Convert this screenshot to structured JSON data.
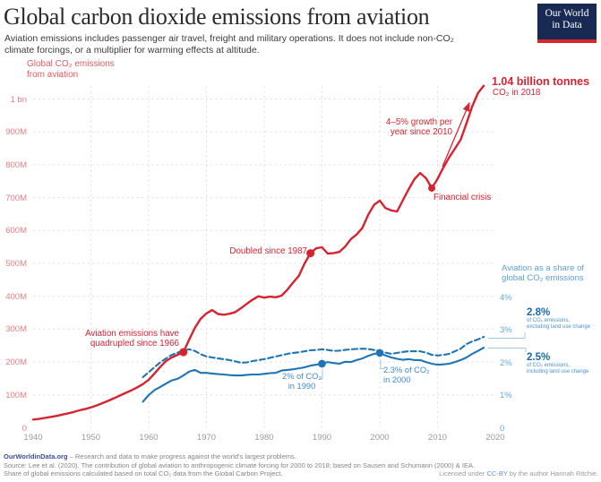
{
  "header": {
    "title": "Global carbon dioxide emissions from aviation",
    "subtitle": "Aviation emissions includes passenger air travel, freight and military operations. It does not include non-CO₂\nclimate forcings, or a multiplier for warming effects at altitude.",
    "logo_line1": "Our World",
    "logo_line2": "in Data"
  },
  "chart_data": {
    "type": "line",
    "title": "Global carbon dioxide emissions from aviation",
    "grid": "dashed",
    "left_axis": {
      "label": "Global CO₂ emissions\nfrom aviation",
      "unit": "tonnes of CO₂ per year",
      "range_million_tonnes": [
        0,
        1040
      ],
      "ticks": [
        {
          "v": 0,
          "label": "0"
        },
        {
          "v": 100,
          "label": "100M"
        },
        {
          "v": 200,
          "label": "200M"
        },
        {
          "v": 300,
          "label": "300M"
        },
        {
          "v": 400,
          "label": "400M"
        },
        {
          "v": 500,
          "label": "500M"
        },
        {
          "v": 600,
          "label": "600M"
        },
        {
          "v": 700,
          "label": "700M"
        },
        {
          "v": 800,
          "label": "800M"
        },
        {
          "v": 900,
          "label": "900M"
        },
        {
          "v": 1000,
          "label": "1 bn"
        }
      ]
    },
    "right_axis": {
      "label": "Aviation as a share of\nglobal CO₂ emissions",
      "range_percent": [
        0,
        4
      ],
      "ticks": [
        {
          "v": 0,
          "label": "0"
        },
        {
          "v": 1,
          "label": "1%"
        },
        {
          "v": 2,
          "label": "2%"
        },
        {
          "v": 3,
          "label": "3%"
        },
        {
          "v": 4,
          "label": "4%"
        }
      ]
    },
    "x_axis": {
      "range": [
        1940,
        2020
      ],
      "ticks": [
        1940,
        1950,
        1960,
        1970,
        1980,
        1990,
        2000,
        2010,
        2020
      ]
    },
    "series": [
      {
        "name": "Global CO₂ emissions from aviation (million tonnes)",
        "axis": "left",
        "style": "solid",
        "color": "#d6232f",
        "width": 2.4,
        "points": [
          [
            1940,
            25
          ],
          [
            1941,
            27
          ],
          [
            1942,
            30
          ],
          [
            1943,
            33
          ],
          [
            1944,
            36
          ],
          [
            1945,
            40
          ],
          [
            1946,
            44
          ],
          [
            1947,
            48
          ],
          [
            1948,
            53
          ],
          [
            1949,
            57
          ],
          [
            1950,
            62
          ],
          [
            1951,
            68
          ],
          [
            1952,
            75
          ],
          [
            1953,
            82
          ],
          [
            1954,
            90
          ],
          [
            1955,
            98
          ],
          [
            1956,
            106
          ],
          [
            1957,
            114
          ],
          [
            1958,
            123
          ],
          [
            1959,
            133
          ],
          [
            1960,
            146
          ],
          [
            1961,
            165
          ],
          [
            1962,
            185
          ],
          [
            1963,
            203
          ],
          [
            1964,
            214
          ],
          [
            1965,
            222
          ],
          [
            1966,
            230
          ],
          [
            1967,
            268
          ],
          [
            1968,
            304
          ],
          [
            1969,
            332
          ],
          [
            1970,
            348
          ],
          [
            1971,
            358
          ],
          [
            1972,
            346
          ],
          [
            1973,
            344
          ],
          [
            1974,
            347
          ],
          [
            1975,
            352
          ],
          [
            1976,
            364
          ],
          [
            1977,
            377
          ],
          [
            1978,
            390
          ],
          [
            1979,
            400
          ],
          [
            1980,
            396
          ],
          [
            1981,
            399
          ],
          [
            1982,
            397
          ],
          [
            1983,
            402
          ],
          [
            1984,
            420
          ],
          [
            1985,
            442
          ],
          [
            1986,
            462
          ],
          [
            1987,
            500
          ],
          [
            1988,
            531
          ],
          [
            1989,
            546
          ],
          [
            1990,
            549
          ],
          [
            1991,
            530
          ],
          [
            1992,
            531
          ],
          [
            1993,
            535
          ],
          [
            1994,
            551
          ],
          [
            1995,
            574
          ],
          [
            1996,
            588
          ],
          [
            1997,
            608
          ],
          [
            1998,
            648
          ],
          [
            1999,
            678
          ],
          [
            2000,
            691
          ],
          [
            2001,
            668
          ],
          [
            2002,
            661
          ],
          [
            2003,
            658
          ],
          [
            2004,
            692
          ],
          [
            2005,
            726
          ],
          [
            2006,
            756
          ],
          [
            2007,
            775
          ],
          [
            2008,
            759
          ],
          [
            2009,
            729
          ],
          [
            2010,
            757
          ],
          [
            2011,
            791
          ],
          [
            2012,
            822
          ],
          [
            2013,
            849
          ],
          [
            2014,
            876
          ],
          [
            2015,
            926
          ],
          [
            2016,
            977
          ],
          [
            2017,
            1018
          ],
          [
            2018,
            1040
          ]
        ]
      },
      {
        "name": "Share of CO₂ emissions excluding land use change (%)",
        "axis": "right",
        "style": "dashed",
        "color": "#1e74b4",
        "width": 2.1,
        "points": [
          [
            1959,
            1.55
          ],
          [
            1960,
            1.7
          ],
          [
            1961,
            1.85
          ],
          [
            1962,
            2.0
          ],
          [
            1963,
            2.12
          ],
          [
            1964,
            2.23
          ],
          [
            1965,
            2.3
          ],
          [
            1966,
            2.37
          ],
          [
            1967,
            2.4
          ],
          [
            1968,
            2.35
          ],
          [
            1969,
            2.25
          ],
          [
            1970,
            2.18
          ],
          [
            1971,
            2.15
          ],
          [
            1972,
            2.12
          ],
          [
            1973,
            2.1
          ],
          [
            1974,
            2.07
          ],
          [
            1975,
            2.03
          ],
          [
            1976,
            1.99
          ],
          [
            1977,
            2.0
          ],
          [
            1978,
            2.04
          ],
          [
            1979,
            2.07
          ],
          [
            1980,
            2.1
          ],
          [
            1981,
            2.14
          ],
          [
            1982,
            2.18
          ],
          [
            1983,
            2.22
          ],
          [
            1984,
            2.26
          ],
          [
            1985,
            2.29
          ],
          [
            1986,
            2.31
          ],
          [
            1987,
            2.34
          ],
          [
            1988,
            2.37
          ],
          [
            1989,
            2.38
          ],
          [
            1990,
            2.4
          ],
          [
            1991,
            2.38
          ],
          [
            1992,
            2.35
          ],
          [
            1993,
            2.36
          ],
          [
            1994,
            2.38
          ],
          [
            1995,
            2.4
          ],
          [
            1996,
            2.41
          ],
          [
            1997,
            2.42
          ],
          [
            1998,
            2.41
          ],
          [
            1999,
            2.38
          ],
          [
            2000,
            2.35
          ],
          [
            2001,
            2.3
          ],
          [
            2002,
            2.26
          ],
          [
            2003,
            2.29
          ],
          [
            2004,
            2.32
          ],
          [
            2005,
            2.34
          ],
          [
            2006,
            2.34
          ],
          [
            2007,
            2.34
          ],
          [
            2008,
            2.3
          ],
          [
            2009,
            2.23
          ],
          [
            2010,
            2.21
          ],
          [
            2011,
            2.23
          ],
          [
            2012,
            2.26
          ],
          [
            2013,
            2.34
          ],
          [
            2014,
            2.42
          ],
          [
            2015,
            2.56
          ],
          [
            2016,
            2.64
          ],
          [
            2017,
            2.7
          ],
          [
            2018,
            2.78
          ]
        ]
      },
      {
        "name": "Share of CO₂ emissions including land use change (%)",
        "axis": "right",
        "style": "solid",
        "color": "#1e74b4",
        "width": 2.1,
        "points": [
          [
            1959,
            0.8
          ],
          [
            1960,
            1.0
          ],
          [
            1961,
            1.15
          ],
          [
            1962,
            1.25
          ],
          [
            1963,
            1.35
          ],
          [
            1964,
            1.45
          ],
          [
            1965,
            1.5
          ],
          [
            1966,
            1.6
          ],
          [
            1967,
            1.72
          ],
          [
            1968,
            1.77
          ],
          [
            1969,
            1.68
          ],
          [
            1970,
            1.68
          ],
          [
            1971,
            1.66
          ],
          [
            1972,
            1.64
          ],
          [
            1973,
            1.63
          ],
          [
            1974,
            1.61
          ],
          [
            1975,
            1.6
          ],
          [
            1976,
            1.6
          ],
          [
            1977,
            1.62
          ],
          [
            1978,
            1.63
          ],
          [
            1979,
            1.63
          ],
          [
            1980,
            1.65
          ],
          [
            1981,
            1.67
          ],
          [
            1982,
            1.68
          ],
          [
            1983,
            1.75
          ],
          [
            1984,
            1.77
          ],
          [
            1985,
            1.79
          ],
          [
            1986,
            1.82
          ],
          [
            1987,
            1.85
          ],
          [
            1988,
            1.9
          ],
          [
            1989,
            1.93
          ],
          [
            1990,
            1.96
          ],
          [
            1991,
            2.01
          ],
          [
            1992,
            1.98
          ],
          [
            1993,
            1.96
          ],
          [
            1994,
            2.02
          ],
          [
            1995,
            2.01
          ],
          [
            1996,
            2.07
          ],
          [
            1997,
            2.12
          ],
          [
            1998,
            2.2
          ],
          [
            1999,
            2.26
          ],
          [
            2000,
            2.29
          ],
          [
            2001,
            2.21
          ],
          [
            2002,
            2.15
          ],
          [
            2003,
            2.11
          ],
          [
            2004,
            2.08
          ],
          [
            2005,
            2.1
          ],
          [
            2006,
            2.07
          ],
          [
            2007,
            2.07
          ],
          [
            2008,
            2.01
          ],
          [
            2009,
            1.96
          ],
          [
            2010,
            1.93
          ],
          [
            2011,
            1.94
          ],
          [
            2012,
            1.96
          ],
          [
            2013,
            2.01
          ],
          [
            2014,
            2.07
          ],
          [
            2015,
            2.15
          ],
          [
            2016,
            2.26
          ],
          [
            2017,
            2.35
          ],
          [
            2018,
            2.45
          ]
        ]
      }
    ],
    "markers": [
      {
        "series": 0,
        "year": 1966,
        "value": 230,
        "r": 4.5
      },
      {
        "series": 0,
        "year": 1988,
        "value": 531,
        "r": 4.5
      },
      {
        "series": 0,
        "year": 2009,
        "value": 729,
        "r": 4
      },
      {
        "series": 2,
        "year": 1990,
        "value": 1.96,
        "r": 4.3
      },
      {
        "series": 2,
        "year": 2000,
        "value": 2.29,
        "r": 4.3
      }
    ],
    "legend_position": "annotations-inline"
  },
  "annotations": {
    "axis_title_left": "Global CO₂ emissions\nfrom aviation",
    "quadrupled": "Aviation emissions have\nquadrupled since 1966",
    "doubled": "Doubled since 1987",
    "growth": "4–5% growth per\nyear since 2010",
    "financial_crisis": "Financial crisis",
    "end_value": "1.04 billion tonnes",
    "end_value_sub": "CO₂ in 2018",
    "share_1990": "2% of CO₂\nin 1990",
    "share_2000": "2.3% of CO₂\nin 2000",
    "right_axis_title": "Aviation as a share of\nglobal CO₂ emissions",
    "share_excl_value": "2.8%",
    "share_excl_desc": "of CO₂ emissions,\nexcluding land use change",
    "share_incl_value": "2.5%",
    "share_incl_desc": "of CO₂ emissions,\nincluding land use change"
  },
  "footer": {
    "site": "OurWorldinData.org",
    "tagline": " – Research and data to make progress against the world's largest problems.",
    "source": "Source: Lee et al. (2020). The contribution of global aviation to anthropogenic climate forcing for 2000 to 2018; based on Sausen and Schumann (2000) & IEA.",
    "note": "Share of global emissions calculated based on total CO₂ data from the Global Carbon Project.",
    "license_prefix": "Licensed under ",
    "license_link": "CC-BY",
    "license_suffix": " by the author Hannah Ritchie."
  }
}
